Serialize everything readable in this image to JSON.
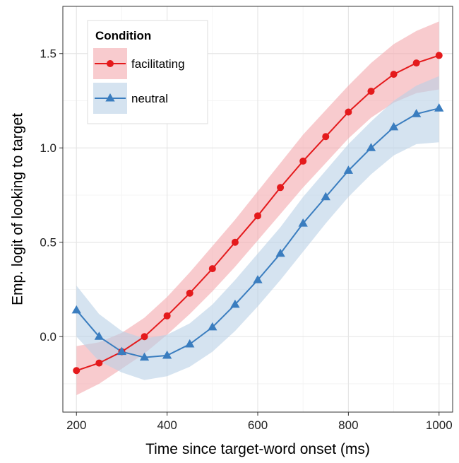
{
  "chart_data": {
    "type": "line",
    "title": "",
    "xlabel": "Time since target-word onset (ms)",
    "ylabel": "Emp. logit of looking to target",
    "xlim": [
      170,
      1030
    ],
    "ylim": [
      -0.4,
      1.75
    ],
    "xticks": [
      200,
      400,
      600,
      800,
      1000
    ],
    "xtick_labels": [
      "200",
      "400",
      "600",
      "800",
      "1000"
    ],
    "yticks": [
      0.0,
      0.5,
      1.0,
      1.5
    ],
    "ytick_labels": [
      "0.0",
      "0.5",
      "1.0",
      "1.5"
    ],
    "grid": true,
    "legend": {
      "title": "Condition",
      "placement": "top-left"
    },
    "x": [
      200,
      250,
      300,
      350,
      400,
      450,
      500,
      550,
      600,
      650,
      700,
      750,
      800,
      850,
      900,
      950,
      1000
    ],
    "series": [
      {
        "name": "facilitating",
        "color": "#e41a1c",
        "band_color": "#f4a9ae",
        "marker": "circle",
        "values": [
          -0.18,
          -0.14,
          -0.08,
          0.0,
          0.11,
          0.23,
          0.36,
          0.5,
          0.64,
          0.79,
          0.93,
          1.06,
          1.19,
          1.3,
          1.39,
          1.45,
          1.49
        ],
        "lower": [
          -0.31,
          -0.25,
          -0.17,
          -0.09,
          0.01,
          0.12,
          0.24,
          0.37,
          0.51,
          0.65,
          0.79,
          0.92,
          1.05,
          1.16,
          1.24,
          1.29,
          1.31
        ],
        "upper": [
          -0.05,
          -0.03,
          0.02,
          0.1,
          0.21,
          0.34,
          0.48,
          0.62,
          0.77,
          0.92,
          1.07,
          1.2,
          1.33,
          1.45,
          1.55,
          1.62,
          1.67
        ]
      },
      {
        "name": "neutral",
        "color": "#3a7dbf",
        "band_color": "#b9d0e6",
        "marker": "triangle",
        "values": [
          0.14,
          0.0,
          -0.08,
          -0.11,
          -0.1,
          -0.04,
          0.05,
          0.17,
          0.3,
          0.44,
          0.6,
          0.74,
          0.88,
          1.0,
          1.11,
          1.18,
          1.21
        ],
        "lower": [
          0.0,
          -0.13,
          -0.19,
          -0.23,
          -0.21,
          -0.16,
          -0.08,
          0.03,
          0.16,
          0.3,
          0.45,
          0.6,
          0.74,
          0.86,
          0.96,
          1.02,
          1.03
        ],
        "upper": [
          0.27,
          0.12,
          0.03,
          -0.01,
          0.01,
          0.07,
          0.17,
          0.3,
          0.44,
          0.58,
          0.74,
          0.88,
          1.02,
          1.14,
          1.25,
          1.33,
          1.38
        ]
      }
    ]
  }
}
